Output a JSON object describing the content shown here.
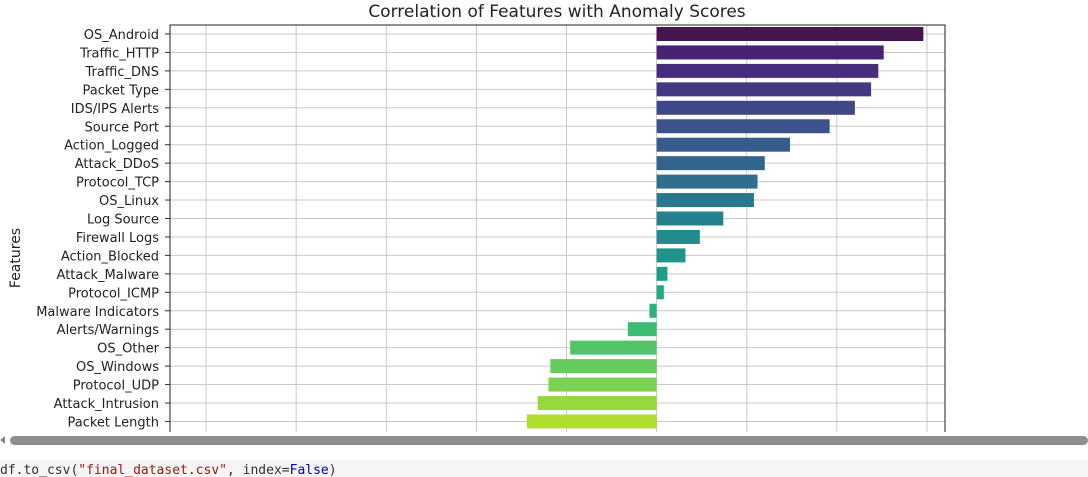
{
  "chart_data": {
    "type": "bar",
    "orientation": "horizontal",
    "title": "Correlation of Features with Anomaly Scores",
    "xlabel": "",
    "ylabel": "Features",
    "xlim": [
      -0.027,
      0.016
    ],
    "grid": true,
    "legend": "none",
    "palette": "viridis",
    "categories": [
      "OS_Android",
      "Traffic_HTTP",
      "Traffic_DNS",
      "Packet Type",
      "IDS/IPS Alerts",
      "Source Port",
      "Action_Logged",
      "Attack_DDoS",
      "Protocol_TCP",
      "OS_Linux",
      "Log Source",
      "Firewall Logs",
      "Action_Blocked",
      "Attack_Malware",
      "Protocol_ICMP",
      "Malware Indicators",
      "Alerts/Warnings",
      "OS_Other",
      "OS_Windows",
      "Protocol_UDP",
      "Attack_Intrusion",
      "Packet Length"
    ],
    "values": [
      0.0148,
      0.0126,
      0.0123,
      0.0119,
      0.011,
      0.0096,
      0.0074,
      0.006,
      0.0056,
      0.0054,
      0.0037,
      0.0024,
      0.0016,
      0.0006,
      0.0004,
      -0.0004,
      -0.0016,
      -0.0048,
      -0.0059,
      -0.006,
      -0.0066,
      -0.0072
    ],
    "colors": [
      "#44154f",
      "#482374",
      "#472d7b",
      "#453781",
      "#3f4788",
      "#3b528b",
      "#365c8d",
      "#32658e",
      "#2e6f8e",
      "#2a788e",
      "#26818e",
      "#228b8d",
      "#1f948c",
      "#1f9f88",
      "#24a884",
      "#2db27d",
      "#3dbc74",
      "#52c569",
      "#66cb5d",
      "#7cd250",
      "#96d83f",
      "#b0dd2f"
    ]
  },
  "code_snippet": {
    "prefix": "df.to_csv(",
    "string": "\"final_dataset.csv\"",
    "middle": ", index=",
    "keyword": "False",
    "suffix": ")"
  }
}
